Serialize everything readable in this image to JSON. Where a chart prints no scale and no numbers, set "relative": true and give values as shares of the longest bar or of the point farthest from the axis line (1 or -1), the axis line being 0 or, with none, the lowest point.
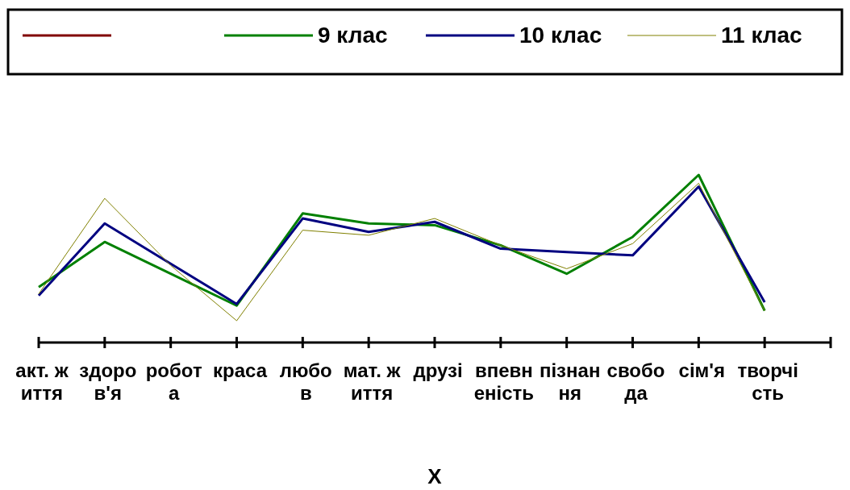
{
  "chart_data": {
    "type": "line",
    "relative": true,
    "xlabel": "Х",
    "legend": "top",
    "categories": [
      "акт. життя",
      "здоров'я",
      "робота",
      "краса",
      "любов",
      "мат. життя",
      "друзі",
      "впевненість",
      "пізнання",
      "свобода",
      "сім'я",
      "творчість"
    ],
    "series": [
      {
        "color": "#800000",
        "values": [
          null,
          null,
          null,
          null,
          null,
          null,
          null,
          null,
          null,
          null,
          null,
          null
        ]
      },
      {
        "name": "9 клас",
        "color": "#008000",
        "values": [
          0.33,
          0.6,
          0.41,
          0.22,
          0.77,
          0.71,
          0.7,
          0.58,
          0.41,
          0.63,
          1,
          0.19
        ]
      },
      {
        "name": "10 клас",
        "color": "#000080",
        "values": [
          0.28,
          0.71,
          0.47,
          0.23,
          0.74,
          0.66,
          0.72,
          0.56,
          0.54,
          0.52,
          0.93,
          0.24
        ]
      },
      {
        "name": "11 клас",
        "color": "#808000",
        "values": [
          0.29,
          0.86,
          0.46,
          0.13,
          0.67,
          0.64,
          0.74,
          0.58,
          0.44,
          0.59,
          0.95,
          0.19
        ]
      }
    ]
  }
}
